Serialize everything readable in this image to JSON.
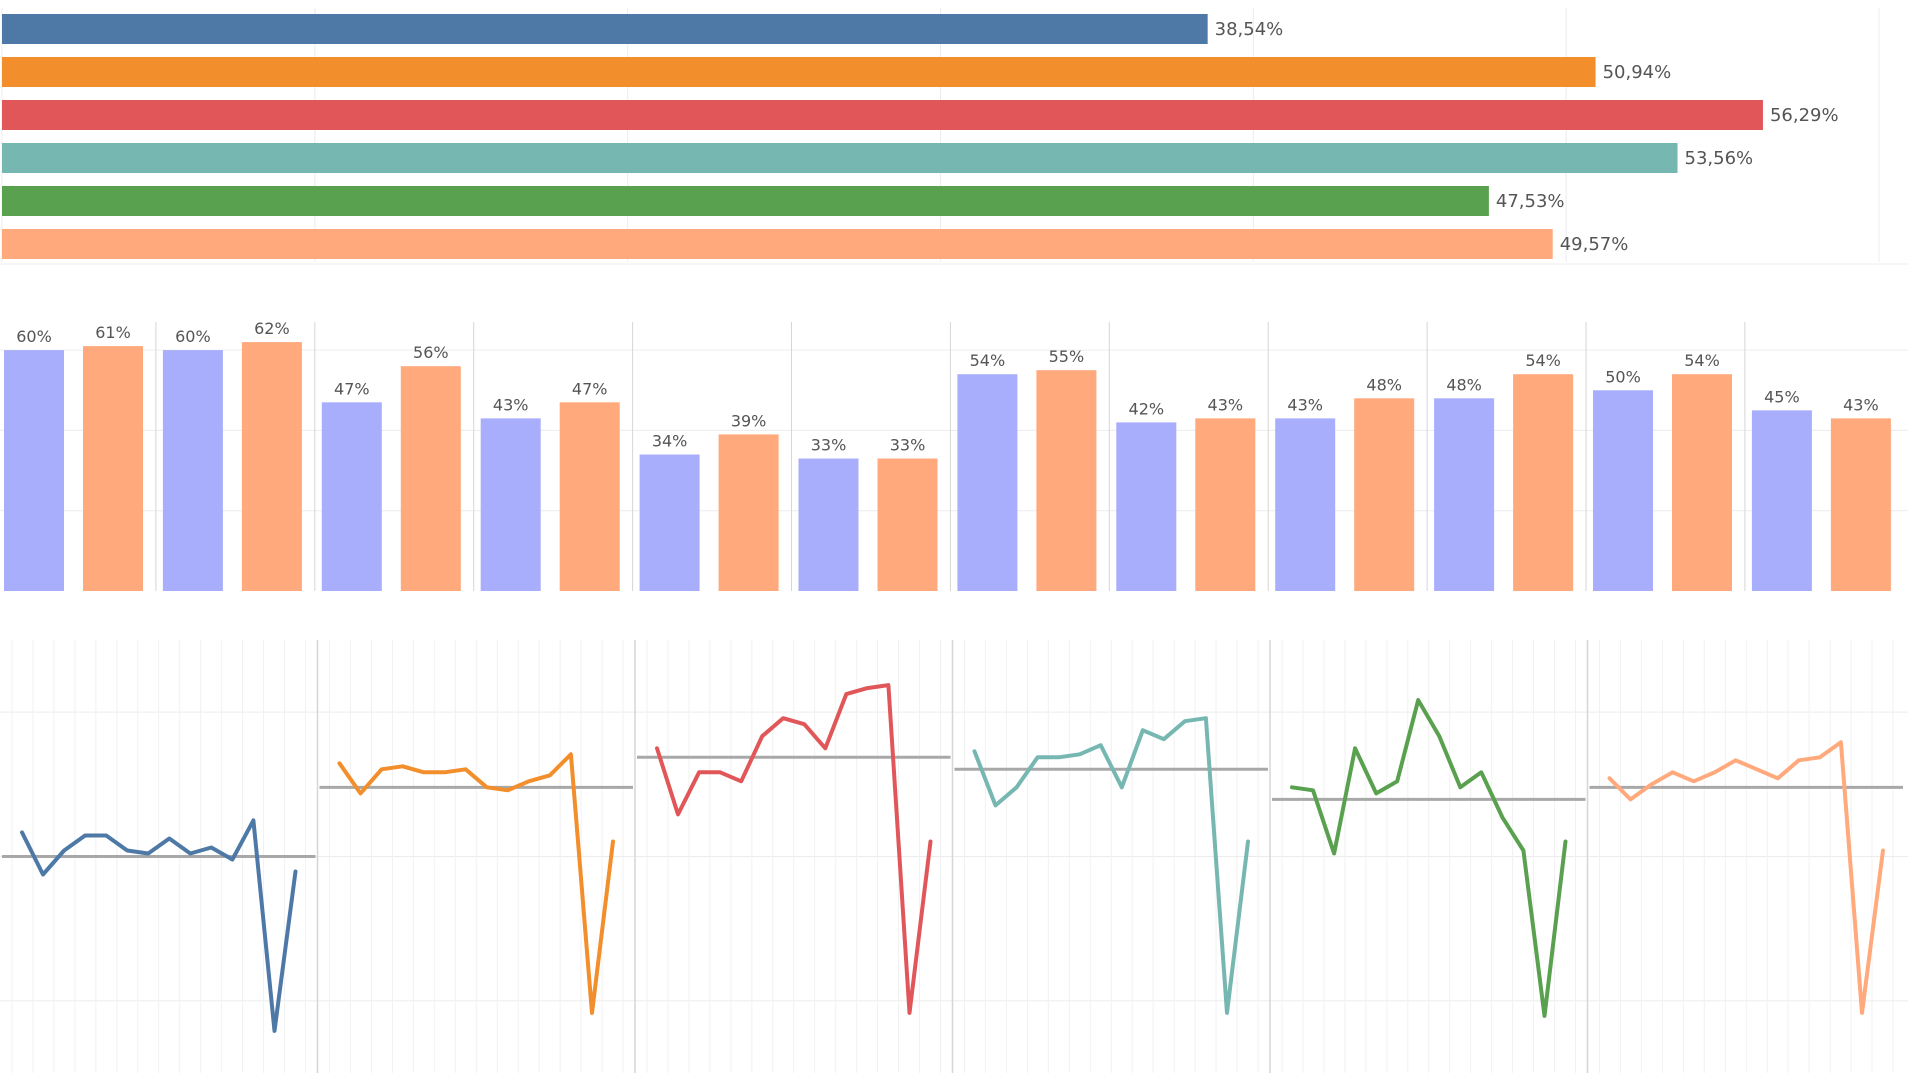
{
  "colors": {
    "blue": "#4e79a7",
    "orange": "#f28e2b",
    "red": "#e15759",
    "teal": "#76b7b2",
    "green": "#59a14f",
    "peach": "#ffa97d",
    "lavender": "#a8aefc",
    "grid": "#ececec",
    "divider": "#d6d6d6",
    "reference_line": "#a8a8a8",
    "label": "#555555"
  },
  "chart_data": [
    {
      "type": "bar",
      "orientation": "horizontal",
      "categories": [
        "",
        "",
        "",
        "",
        "",
        ""
      ],
      "values": [
        38.54,
        50.94,
        56.29,
        53.56,
        47.53,
        49.57
      ],
      "data_labels": [
        "38,54%",
        "50,94%",
        "56,29%",
        "53,56%",
        "47,53%",
        "49,57%"
      ],
      "bar_colors": [
        "#4e79a7",
        "#f28e2b",
        "#e15759",
        "#76b7b2",
        "#59a14f",
        "#ffa97d"
      ],
      "xlim": [
        0,
        60
      ],
      "grid": true,
      "title": "",
      "xlabel": "",
      "ylabel": ""
    },
    {
      "type": "bar",
      "orientation": "vertical",
      "categories": [
        "",
        "",
        "",
        "",
        "",
        "",
        "",
        "",
        "",
        "",
        "",
        ""
      ],
      "series": [
        {
          "color": "#a8aefc",
          "values": [
            60,
            60,
            47,
            43,
            34,
            33,
            54,
            42,
            43,
            48,
            50,
            45
          ],
          "data_labels": [
            "60%",
            "60%",
            "47%",
            "43%",
            "34%",
            "33%",
            "54%",
            "42%",
            "43%",
            "48%",
            "50%",
            "45%"
          ]
        },
        {
          "color": "#ffa97d",
          "values": [
            61,
            62,
            56,
            47,
            39,
            33,
            55,
            43,
            48,
            54,
            54,
            43
          ],
          "data_labels": [
            "61%",
            "62%",
            "56%",
            "47%",
            "39%",
            "33%",
            "55%",
            "43%",
            "48%",
            "54%",
            "54%",
            "43%"
          ]
        }
      ],
      "ylim": [
        0,
        68
      ],
      "grid": true,
      "title": "",
      "xlabel": "",
      "ylabel": ""
    },
    {
      "type": "line",
      "panels": 6,
      "x": [
        1,
        2,
        3,
        4,
        5,
        6,
        7,
        8,
        9,
        10,
        11,
        12,
        13,
        14
      ],
      "ylim": [
        0,
        72
      ],
      "grid": true,
      "reference_line": "average",
      "series": [
        {
          "color": "#4e79a7",
          "values": [
            40,
            33,
            37,
            39.5,
            39.5,
            37,
            36.5,
            39,
            36.5,
            37.5,
            35.5,
            42,
            7,
            33.5
          ],
          "reference": 36
        },
        {
          "color": "#f28e2b",
          "values": [
            51.5,
            46.5,
            50.5,
            51,
            50,
            50,
            50.5,
            47.5,
            47,
            48.5,
            49.5,
            53,
            10,
            38.5
          ],
          "reference": 47.5
        },
        {
          "color": "#e15759",
          "values": [
            54,
            43,
            50,
            50,
            48.5,
            56,
            59,
            58,
            54,
            63,
            64,
            64.5,
            10,
            38.5
          ],
          "reference": 52.5
        },
        {
          "color": "#76b7b2",
          "values": [
            53.5,
            44.5,
            47.5,
            52.5,
            52.5,
            53,
            54.5,
            47.5,
            57,
            55.5,
            58.5,
            59,
            10,
            38.5
          ],
          "reference": 50.5
        },
        {
          "color": "#59a14f",
          "values": [
            47.5,
            47,
            36.5,
            54,
            46.5,
            48.5,
            62,
            56,
            47.5,
            50,
            42.5,
            37,
            9.5,
            38.5
          ],
          "reference": 45.5
        },
        {
          "color": "#ffa97d",
          "values": [
            49,
            45.5,
            48,
            50,
            48.5,
            50,
            52,
            50.5,
            49,
            52,
            52.5,
            55,
            10,
            37
          ],
          "reference": 47.5
        }
      ],
      "title": "",
      "xlabel": "",
      "ylabel": ""
    }
  ]
}
